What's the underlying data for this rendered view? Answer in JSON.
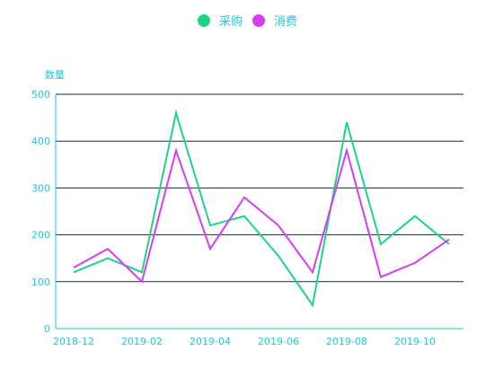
{
  "chart_data": {
    "type": "line",
    "ylabel": "数量",
    "ylim": [
      0,
      500
    ],
    "yticks": [
      0,
      100,
      200,
      300,
      400,
      500
    ],
    "x": [
      "2018-12",
      "2019-01",
      "2019-02",
      "2019-03",
      "2019-04",
      "2019-05",
      "2019-06",
      "2019-07",
      "2019-08",
      "2019-09",
      "2019-10",
      "2019-11"
    ],
    "xtick_labels": [
      "2018-12",
      "2019-02",
      "2019-04",
      "2019-06",
      "2019-08",
      "2019-10"
    ],
    "legend_position": "top-center",
    "grid": "horizontal",
    "series": [
      {
        "name": "采购",
        "color": "#1dd38a",
        "values": [
          120,
          150,
          120,
          460,
          220,
          240,
          155,
          50,
          440,
          180,
          240,
          180
        ]
      },
      {
        "name": "消费",
        "color": "#d43ef0",
        "values": [
          130,
          170,
          100,
          380,
          170,
          280,
          220,
          120,
          380,
          110,
          140,
          190
        ]
      }
    ],
    "axis_color": "#1cc6e0",
    "grid_color": "#1a2a38"
  }
}
